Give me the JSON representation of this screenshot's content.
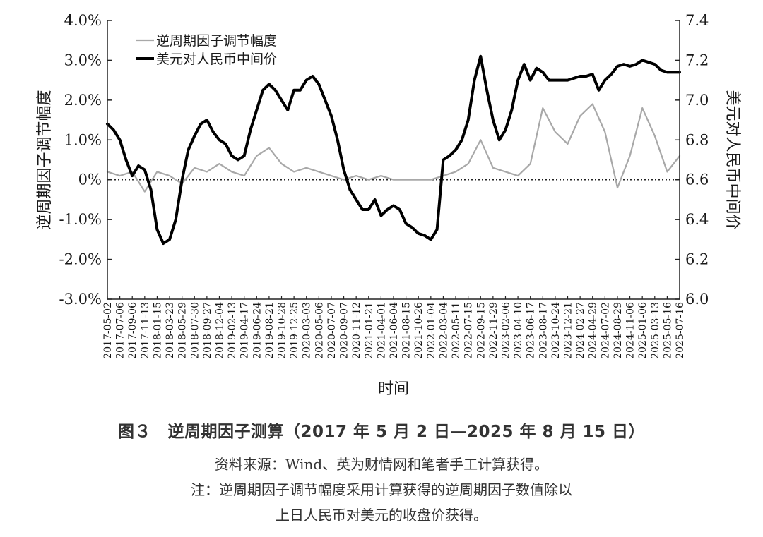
{
  "chart_data": {
    "type": "line",
    "title": "",
    "xlabel": "时间",
    "ylabel_left": "逆周期因子调节幅度",
    "ylabel_right": "美元对人民币中间价",
    "y_left": {
      "range": [
        -3.0,
        4.0
      ],
      "ticks": [
        "4.0%",
        "3.0%",
        "2.0%",
        "1.0%",
        "0%",
        "-1.0%",
        "-2.0%",
        "-3.0%"
      ]
    },
    "y_right": {
      "range": [
        6.0,
        7.4
      ],
      "ticks": [
        "7.4",
        "7.2",
        "7.0",
        "6.8",
        "6.6",
        "6.4",
        "6.2",
        "6.0"
      ]
    },
    "x_tick_labels": [
      "2017-05-02",
      "2017-07-06",
      "2017-09-06",
      "2017-11-13",
      "2018-01-15",
      "2018-03-23",
      "2018-05-29",
      "2018-07-30",
      "2018-09-27",
      "2018-12-04",
      "2019-02-13",
      "2019-04-17",
      "2019-06-24",
      "2019-08-21",
      "2019-10-28",
      "2019-12-25",
      "2020-03-03",
      "2020-05-06",
      "2020-07-07",
      "2020-09-07",
      "2020-11-12",
      "2021-01-21",
      "2021-04-01",
      "2021-06-04",
      "2021-08-15",
      "2021-10-26",
      "2022-01-04",
      "2022-03-04",
      "2022-05-11",
      "2022-07-15",
      "2022-09-15",
      "2022-11-29",
      "2023-02-06",
      "2023-04-10",
      "2023-06-17",
      "2023-08-17",
      "2023-10-24",
      "2023-12-21",
      "2024-02-27",
      "2024-04-29",
      "2024-07-02",
      "2024-08-29",
      "2024-11-06",
      "2025-01-06",
      "2025-03-13",
      "2025-05-16",
      "2025-07-16"
    ],
    "legend_position": "top-left",
    "series": [
      {
        "name": "逆周期因子调节幅度",
        "axis": "left",
        "color": "#a8a8a8",
        "x": [
          0,
          1,
          2,
          3,
          4,
          5,
          6,
          7,
          8,
          9,
          10,
          11,
          12,
          13,
          14,
          15,
          16,
          17,
          18,
          19,
          20,
          21,
          22,
          23,
          24,
          25,
          26,
          27,
          28,
          29,
          30,
          31,
          32,
          33,
          34,
          35,
          36,
          37,
          38,
          39,
          40,
          41,
          42,
          43,
          44,
          45,
          46
        ],
        "values": [
          0.2,
          0.1,
          0.2,
          -0.3,
          0.2,
          0.1,
          -0.1,
          0.3,
          0.2,
          0.4,
          0.2,
          0.1,
          0.6,
          0.8,
          0.4,
          0.2,
          0.3,
          0.2,
          0.1,
          0.0,
          0.1,
          0.0,
          0.1,
          0.0,
          0.0,
          0.0,
          0.0,
          0.1,
          0.2,
          0.4,
          1.0,
          0.3,
          0.2,
          0.1,
          0.4,
          1.8,
          1.2,
          0.9,
          1.6,
          1.9,
          1.2,
          -0.2,
          0.6,
          1.8,
          1.1,
          0.2,
          0.6
        ]
      },
      {
        "name": "美元对人民币中间价",
        "axis": "right",
        "color": "#000000",
        "x": [
          0,
          0.5,
          1,
          1.5,
          2,
          2.5,
          3,
          3.5,
          4,
          4.5,
          5,
          5.5,
          6,
          6.5,
          7,
          7.5,
          8,
          8.5,
          9,
          9.5,
          10,
          10.5,
          11,
          11.5,
          12,
          12.5,
          13,
          13.5,
          14,
          14.5,
          15,
          15.5,
          16,
          16.5,
          17,
          17.5,
          18,
          18.5,
          19,
          19.5,
          20,
          20.5,
          21,
          21.5,
          22,
          22.5,
          23,
          23.5,
          24,
          24.5,
          25,
          25.5,
          26,
          26.5,
          27,
          27.5,
          28,
          28.5,
          29,
          29.5,
          30,
          30.5,
          31,
          31.5,
          32,
          32.5,
          33,
          33.5,
          34,
          34.5,
          35,
          35.5,
          36,
          36.5,
          37,
          37.5,
          38,
          38.5,
          39,
          39.5,
          40,
          40.5,
          41,
          41.5,
          42,
          42.5,
          43,
          43.5,
          44,
          44.5,
          45,
          45.5,
          46
        ],
        "values": [
          6.88,
          6.85,
          6.8,
          6.7,
          6.62,
          6.67,
          6.65,
          6.55,
          6.35,
          6.28,
          6.3,
          6.4,
          6.6,
          6.75,
          6.82,
          6.88,
          6.9,
          6.84,
          6.8,
          6.78,
          6.72,
          6.7,
          6.72,
          6.85,
          6.95,
          7.05,
          7.08,
          7.05,
          7.0,
          6.95,
          7.05,
          7.05,
          7.1,
          7.12,
          7.08,
          7.0,
          6.92,
          6.8,
          6.65,
          6.55,
          6.5,
          6.45,
          6.45,
          6.5,
          6.42,
          6.45,
          6.47,
          6.45,
          6.38,
          6.36,
          6.33,
          6.32,
          6.3,
          6.35,
          6.7,
          6.72,
          6.75,
          6.8,
          6.9,
          7.1,
          7.22,
          7.05,
          6.9,
          6.8,
          6.85,
          6.95,
          7.1,
          7.18,
          7.1,
          7.16,
          7.14,
          7.1,
          7.1,
          7.1,
          7.1,
          7.11,
          7.12,
          7.12,
          7.13,
          7.05,
          7.1,
          7.13,
          7.17,
          7.18,
          7.17,
          7.18,
          7.2,
          7.19,
          7.18,
          7.15,
          7.14,
          7.14,
          7.14
        ]
      }
    ]
  },
  "figure": {
    "title": "图３　逆周期因子测算（2017 年 5 月 2 日—2025 年 8 月 15 日）",
    "source": "资料来源：Wind、英为财情网和笔者手工计算获得。",
    "note_line1": "注：逆周期因子调节幅度采用计算获得的逆周期因子数值除以",
    "note_line2": "上日人民币对美元的收盘价获得。"
  }
}
